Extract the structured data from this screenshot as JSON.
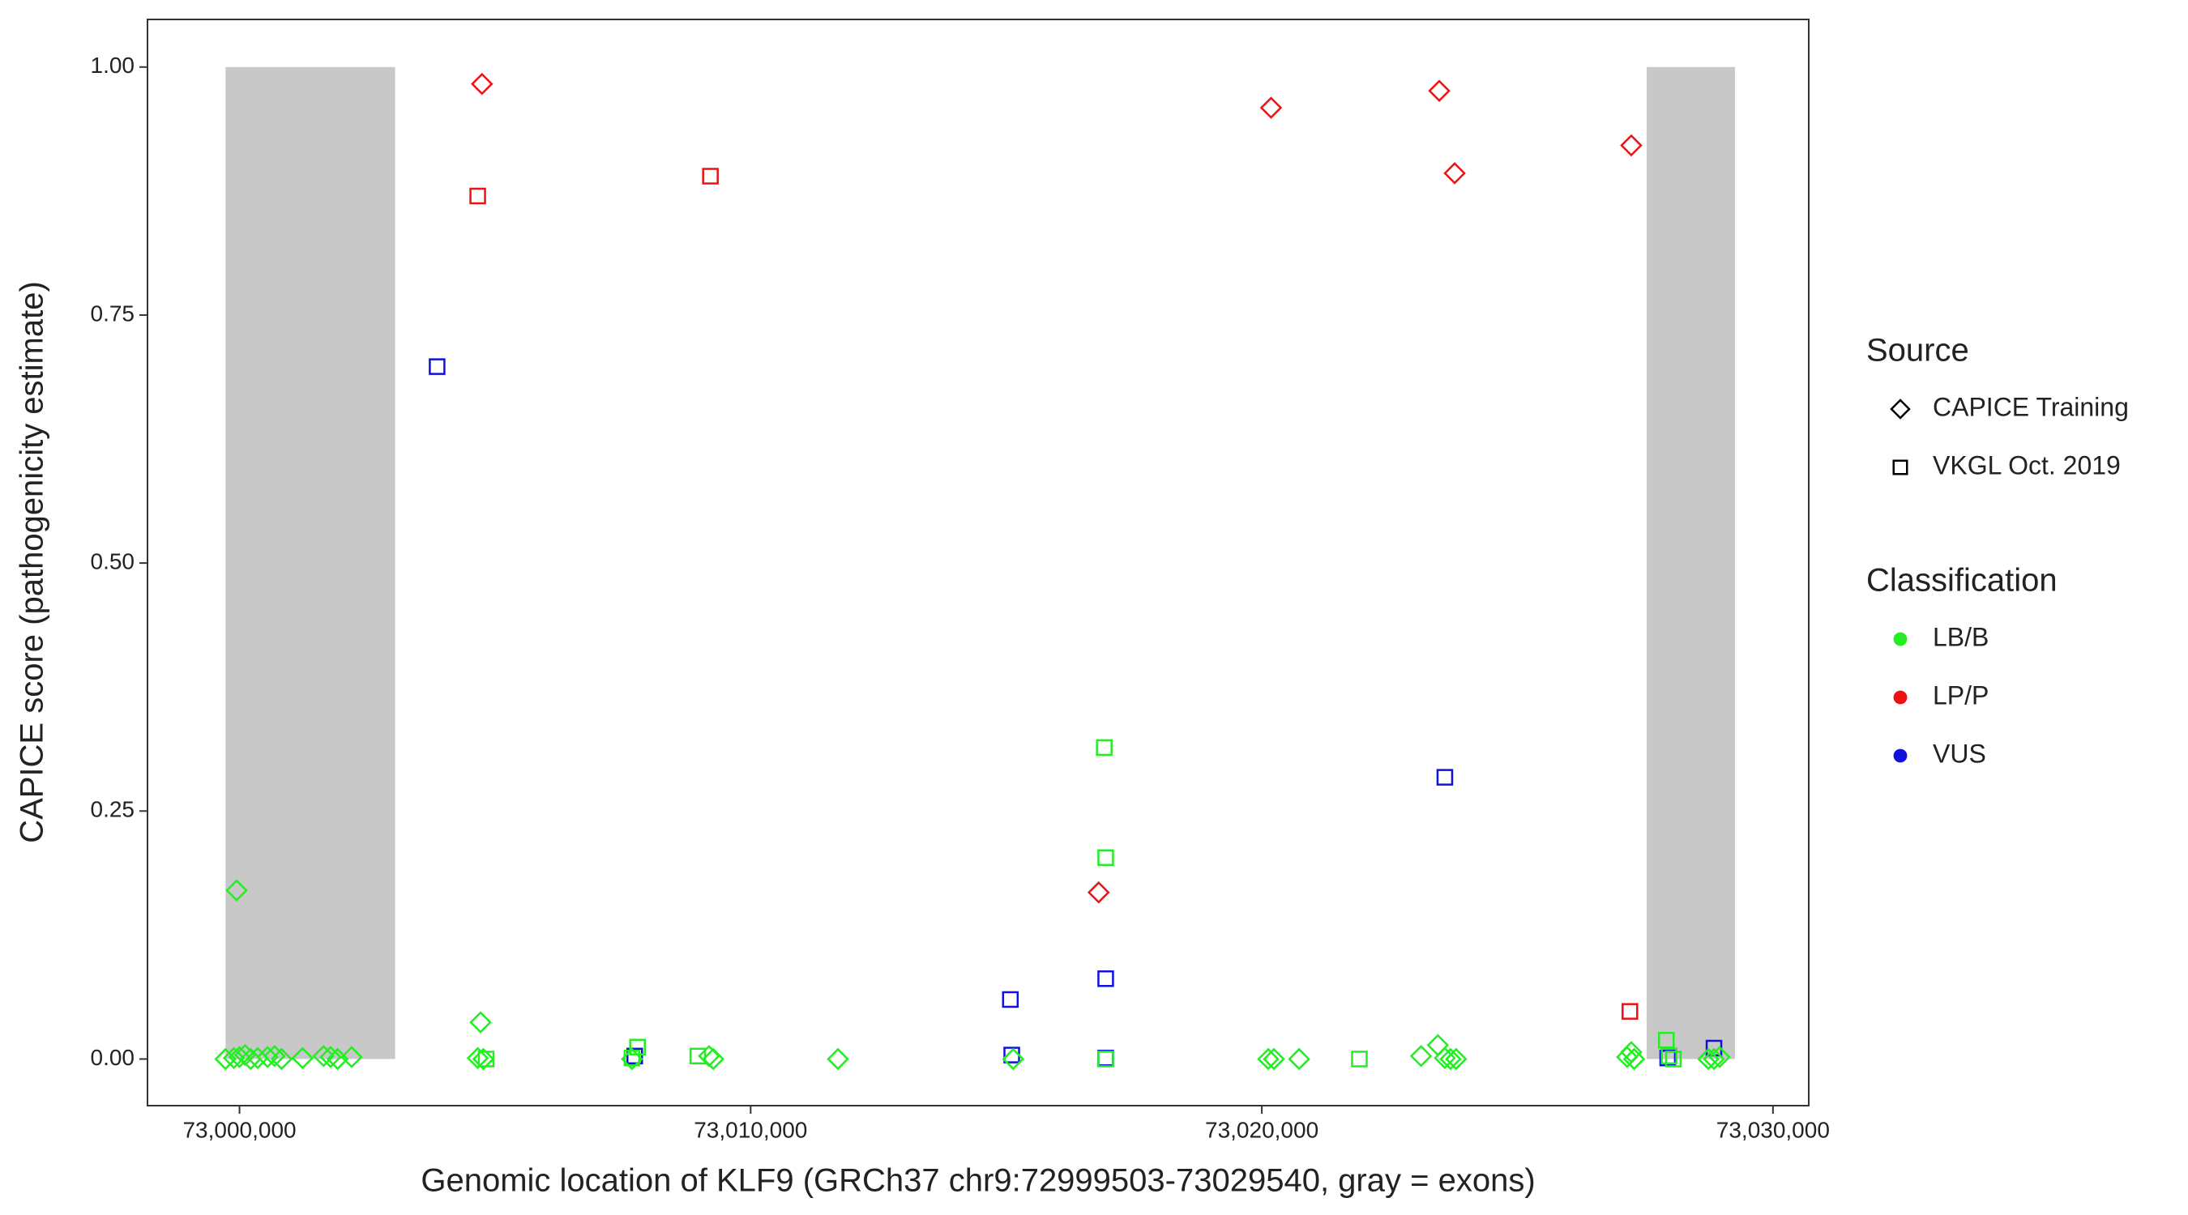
{
  "chart_data": {
    "type": "scatter",
    "x_label": "Genomic location of KLF9 (GRCh37 chr9:72999503-73029540, gray = exons)",
    "y_label": "CAPICE score (pathogenicity estimate)",
    "xlim": [
      72998200,
      73030700
    ],
    "ylim": [
      -0.047,
      1.048
    ],
    "xticks": [
      {
        "value": 73000000,
        "label": "73,000,000"
      },
      {
        "value": 73010000,
        "label": "73,010,000"
      },
      {
        "value": 73020000,
        "label": "73,020,000"
      },
      {
        "value": 73030000,
        "label": "73,030,000"
      }
    ],
    "yticks": [
      {
        "value": 0,
        "label": "0.00"
      },
      {
        "value": 0.25,
        "label": "0.25"
      },
      {
        "value": 0.5,
        "label": "0.50"
      },
      {
        "value": 0.75,
        "label": "0.75"
      },
      {
        "value": 1,
        "label": "1.00"
      }
    ],
    "exons": [
      {
        "start": 72999726,
        "end": 73003044,
        "ylim": [
          0,
          1
        ]
      },
      {
        "start": 73027530,
        "end": 73029258,
        "ylim": [
          0,
          1
        ]
      }
    ],
    "legend": [
      {
        "title": "Source",
        "entries": [
          {
            "name": "CAPICE Training",
            "shape": "diamond"
          },
          {
            "name": "VKGL Oct. 2019",
            "shape": "square"
          }
        ]
      },
      {
        "title": "Classification",
        "entries": [
          {
            "name": "LB/B",
            "color": "#22ee22"
          },
          {
            "name": "LP/P",
            "color": "#ee1111"
          },
          {
            "name": "VUS",
            "color": "#1111dd"
          }
        ]
      }
    ],
    "series": [
      {
        "source": "CAPICE Training",
        "classification": "LP/P",
        "x": [
          73004744,
          73020181,
          73023472,
          73023773,
          73027228,
          73016808
        ],
        "values": [
          0.983,
          0.959,
          0.976,
          0.893,
          0.921,
          0.168
        ]
      },
      {
        "source": "VKGL Oct. 2019",
        "classification": "LP/P",
        "x": [
          73004661,
          73009213,
          73027201
        ],
        "values": [
          0.87,
          0.89,
          0.048
        ]
      },
      {
        "source": "VKGL Oct. 2019",
        "classification": "VUS",
        "x": [
          73003866,
          73015081,
          73016946,
          73023581,
          73007732,
          73015108,
          73016946,
          73027941,
          73028846
        ],
        "values": [
          0.698,
          0.06,
          0.081,
          0.284,
          0.003,
          0.004,
          0.001,
          0.001,
          0.011
        ]
      },
      {
        "source": "VKGL Oct. 2019",
        "classification": "LB/B",
        "x": [
          73016918,
          73016946,
          73007787,
          73007678,
          73004826,
          73008966,
          73021909,
          73027914,
          73027968,
          73028051,
          73016946
        ],
        "values": [
          0.314,
          0.203,
          0.012,
          0.001,
          0,
          0.003,
          0,
          0.019,
          0.003,
          0,
          0
        ]
      },
      {
        "source": "CAPICE Training",
        "classification": "LB/B",
        "x": [
          72999945,
          73004716,
          72999726,
          72999890,
          73000000,
          73000110,
          73000219,
          73000356,
          73000548,
          73000686,
          73000823,
          73001234,
          73001645,
          73001782,
          73001919,
          73002194,
          73004661,
          73004771,
          73009186,
          73009268,
          73011708,
          73015136,
          73020126,
          73020236,
          73020730,
          73023115,
          73023444,
          73023581,
          73023691,
          73023801,
          73027146,
          73027228,
          73027283,
          73028736,
          73028846,
          73028956,
          73007678
        ],
        "values": [
          0.17,
          0.037,
          0,
          0.001,
          0.002,
          0.004,
          0,
          0.001,
          0.002,
          0.003,
          0,
          0.001,
          0.003,
          0.002,
          0,
          0.002,
          0.001,
          0,
          0.003,
          0,
          0,
          0,
          0,
          0,
          0,
          0.003,
          0.014,
          0.001,
          0,
          0,
          0.002,
          0.007,
          0,
          0,
          0,
          0.002,
          0
        ]
      }
    ]
  }
}
